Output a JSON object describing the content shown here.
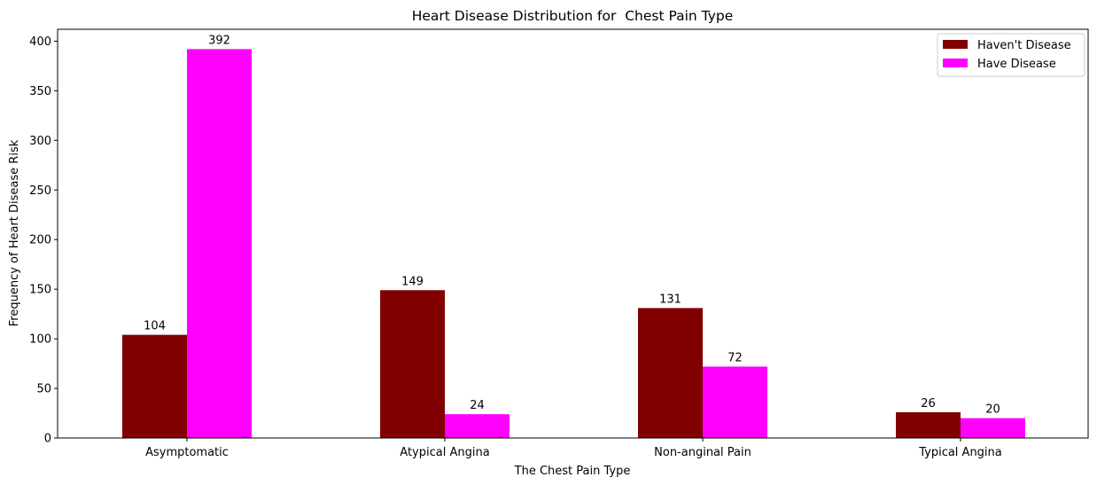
{
  "chart_data": {
    "type": "bar",
    "title": "Heart Disease Distribution for  Chest Pain Type",
    "xlabel": "The Chest Pain Type",
    "ylabel": "Frequency of Heart Disease Risk",
    "categories": [
      "Asymptomatic",
      "Atypical Angina",
      "Non-anginal Pain",
      "Typical Angina"
    ],
    "series": [
      {
        "name": "Haven't Disease",
        "color": "#800000",
        "values": [
          104,
          149,
          131,
          26
        ]
      },
      {
        "name": "Have Disease",
        "color": "#ff00ff",
        "values": [
          392,
          24,
          72,
          20
        ]
      }
    ],
    "ylim": [
      0,
      412
    ],
    "yticks": [
      0,
      50,
      100,
      150,
      200,
      250,
      300,
      350,
      400
    ],
    "grid": false,
    "legend_position": "top-right"
  }
}
